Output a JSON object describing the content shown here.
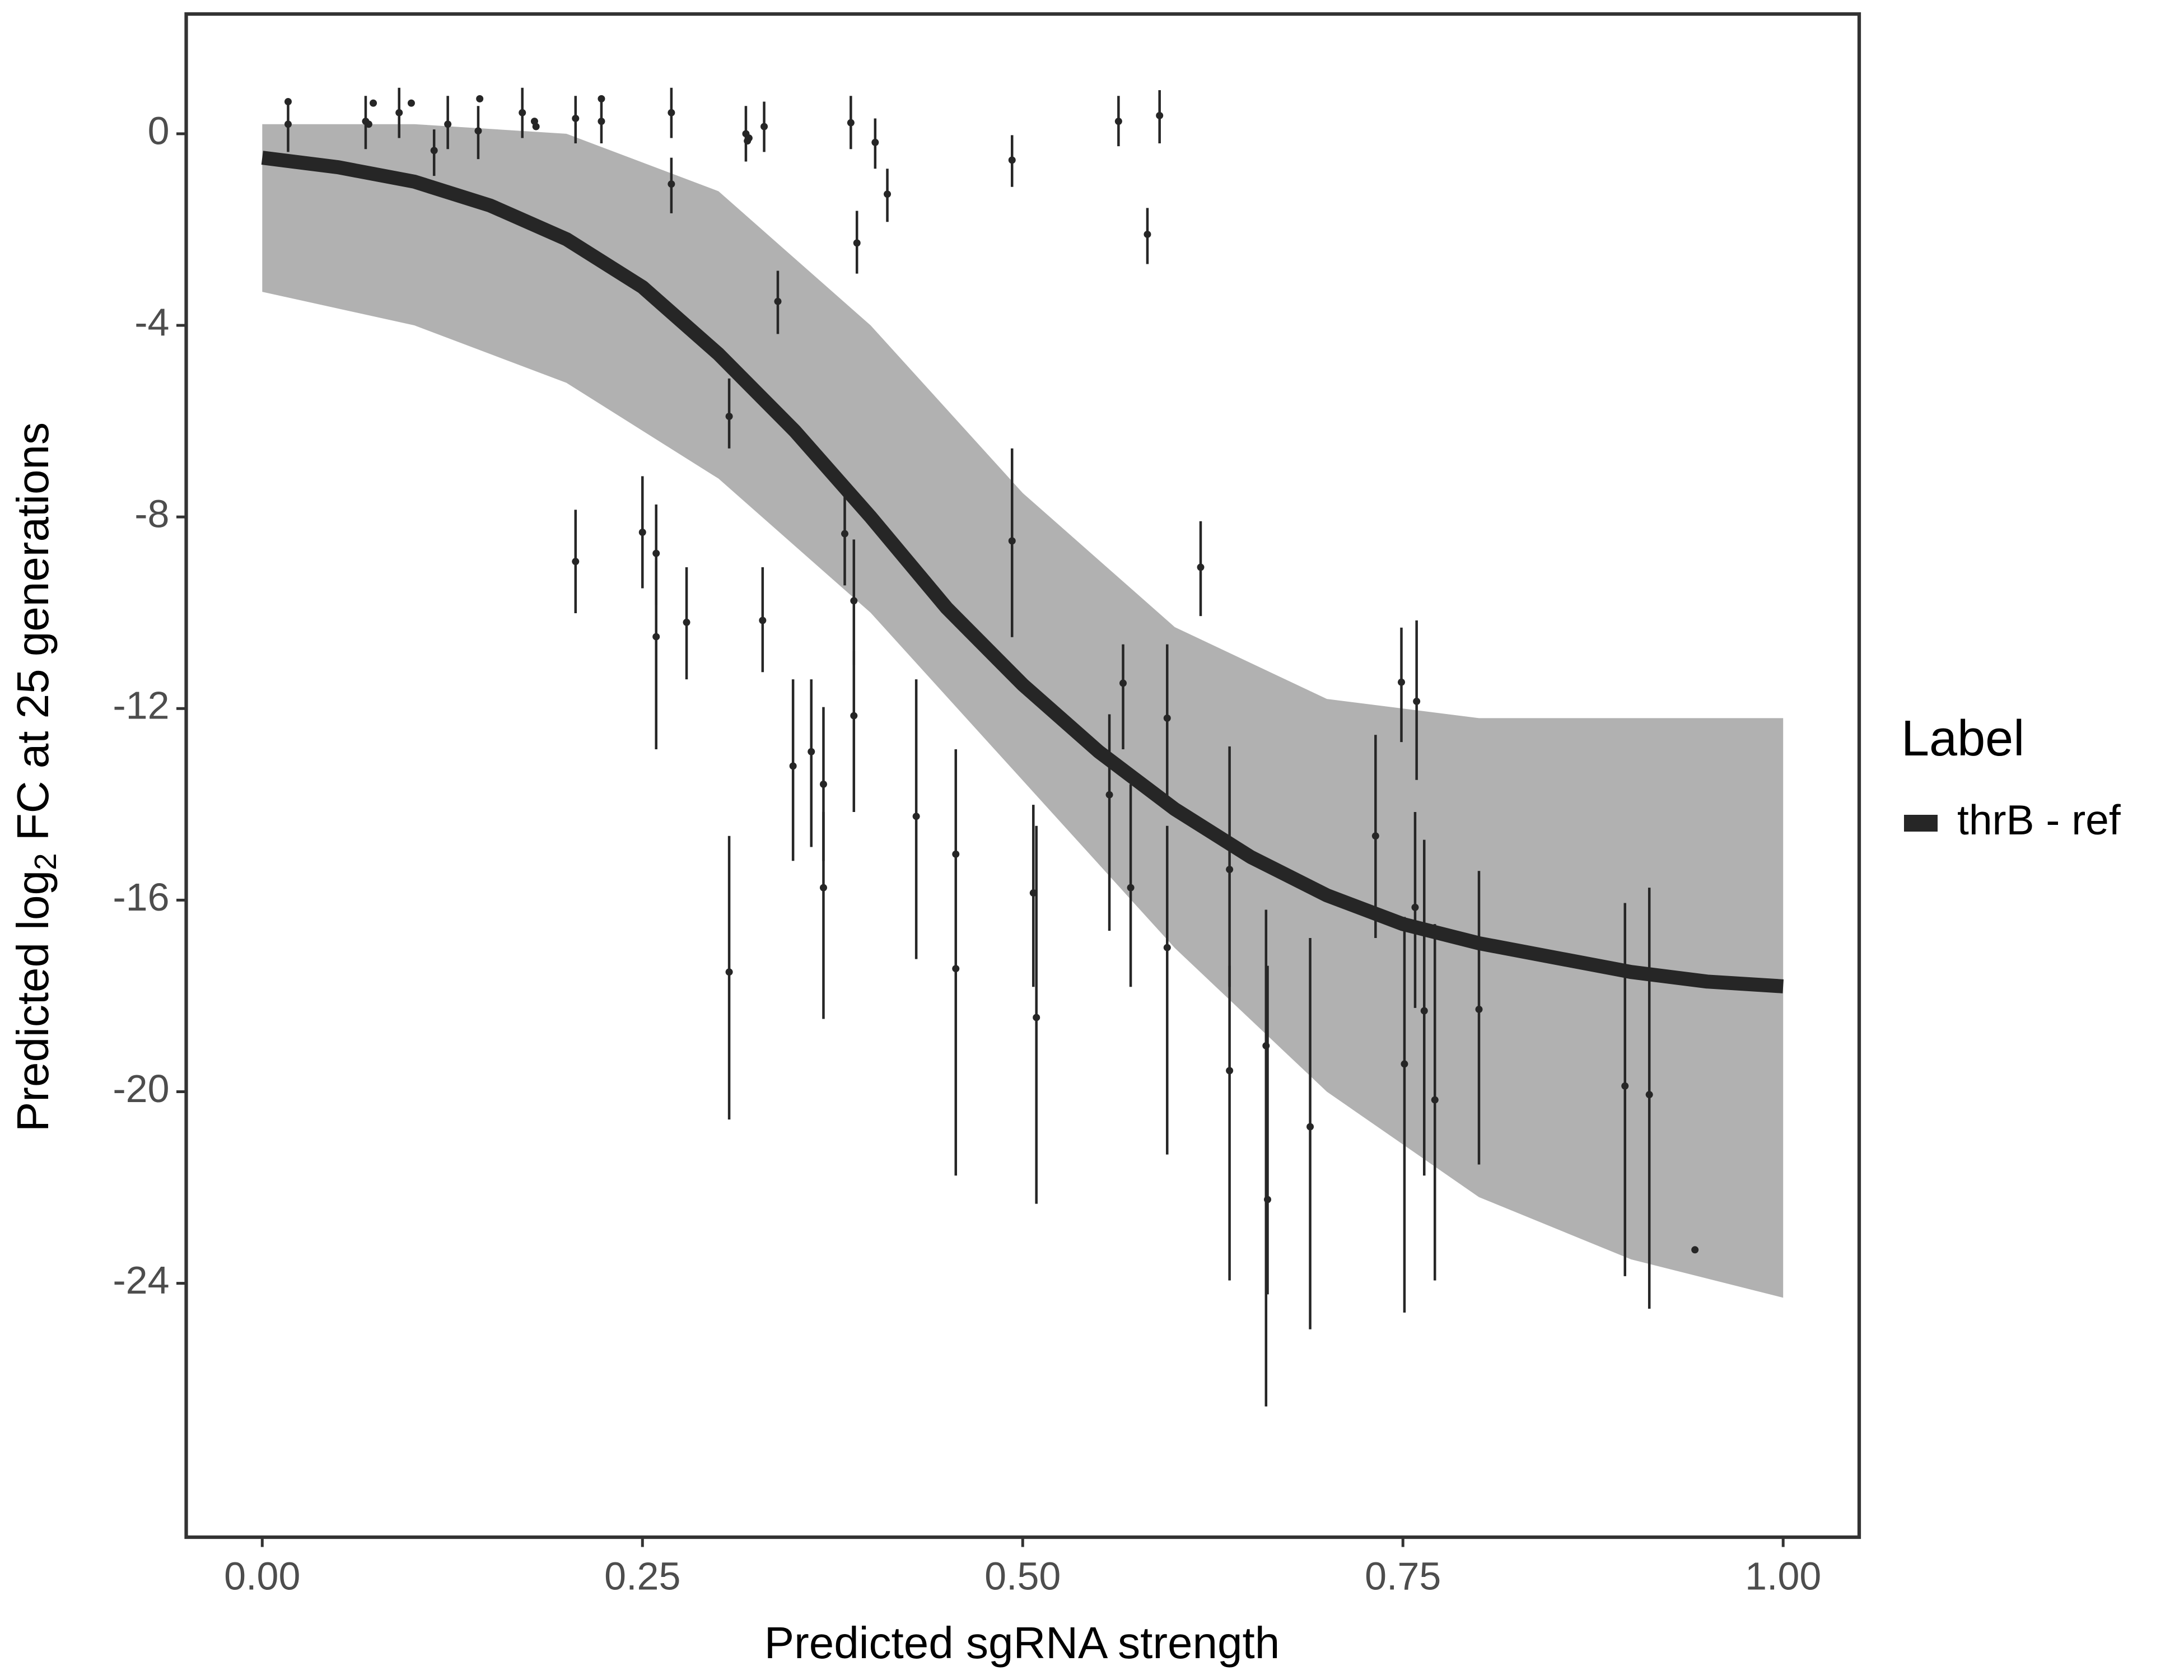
{
  "chart_data": {
    "type": "scatter",
    "xlabel": "Predicted sgRNA strength",
    "ylabel_parts": [
      "Predicted  log",
      "2",
      " FC at 25 generations"
    ],
    "legend_title": "Label",
    "legend_position": "right",
    "xlim": [
      -0.05,
      1.05
    ],
    "ylim": [
      -29.3,
      2.5
    ],
    "xticks": [
      {
        "value": 0,
        "label": "0.00"
      },
      {
        "value": 0.25,
        "label": "0.25"
      },
      {
        "value": 0.5,
        "label": "0.50"
      },
      {
        "value": 0.75,
        "label": "0.75"
      },
      {
        "value": 1,
        "label": "1.00"
      }
    ],
    "yticks": [
      0,
      -4,
      -8,
      -12,
      -16,
      -20,
      -24
    ],
    "series": [
      {
        "name": "thrB - ref",
        "color": "#262626",
        "x": [
          0,
          0.05,
          0.1,
          0.15,
          0.2,
          0.25,
          0.3,
          0.35,
          0.4,
          0.45,
          0.5,
          0.55,
          0.6,
          0.65,
          0.7,
          0.75,
          0.8,
          0.85,
          0.9,
          0.95,
          1
        ],
        "values": [
          -0.5,
          -0.7,
          -1.0,
          -1.5,
          -2.2,
          -3.2,
          -4.6,
          -6.2,
          -8.0,
          -9.9,
          -11.5,
          -12.9,
          -14.1,
          -15.1,
          -15.9,
          -16.5,
          -16.9,
          -17.2,
          -17.5,
          -17.7,
          -17.8
        ]
      }
    ],
    "band": {
      "color": "#a9a9a9",
      "x": [
        0,
        0.1,
        0.2,
        0.3,
        0.4,
        0.5,
        0.6,
        0.7,
        0.8,
        0.9,
        1
      ],
      "upper": [
        0.2,
        0.2,
        0.0,
        -1.2,
        -4.0,
        -7.5,
        -10.3,
        -11.8,
        -12.2,
        -12.2,
        -12.2
      ],
      "lower": [
        -3.3,
        -4.0,
        -5.2,
        -7.2,
        -10.0,
        -13.5,
        -17.0,
        -20.0,
        -22.2,
        -23.5,
        -24.3
      ]
    },
    "points": {
      "color": "#262626",
      "x": [
        0.017,
        0.017,
        0.068,
        0.07,
        0.073,
        0.09,
        0.098,
        0.113,
        0.122,
        0.142,
        0.143,
        0.171,
        0.179,
        0.18,
        0.206,
        0.223,
        0.223,
        0.269,
        0.269,
        0.318,
        0.319,
        0.32,
        0.33,
        0.387,
        0.403,
        0.411,
        0.391,
        0.493,
        0.563,
        0.59,
        0.582,
        0.339,
        0.307,
        0.206,
        0.25,
        0.259,
        0.259,
        0.279,
        0.329,
        0.383,
        0.389,
        0.389,
        0.493,
        0.617,
        0.307,
        0.349,
        0.361,
        0.369,
        0.369,
        0.43,
        0.456,
        0.456,
        0.507,
        0.509,
        0.557,
        0.566,
        0.571,
        0.595,
        0.595,
        0.636,
        0.636,
        0.66,
        0.661,
        0.689,
        0.732,
        0.749,
        0.751,
        0.758,
        0.759,
        0.764,
        0.771,
        0.8,
        0.896,
        0.912,
        0.942
      ],
      "values": [
        0.2,
        0.67,
        0.26,
        0.2,
        0.64,
        0.44,
        0.64,
        -0.35,
        0.2,
        0.06,
        0.73,
        0.44,
        0.26,
        0.15,
        0.32,
        0.26,
        0.73,
        0.44,
        -1.05,
        0,
        -0.15,
        -0.09,
        0.15,
        0.23,
        -0.18,
        -1.26,
        -2.28,
        -0.55,
        0.26,
        0.38,
        -2.1,
        -3.5,
        -5.9,
        -8.93,
        -8.32,
        -8.76,
        -10.5,
        -10.2,
        -10.16,
        -8.35,
        -9.75,
        -12.15,
        -8.5,
        -9.05,
        -17.5,
        -13.2,
        -12.9,
        -13.58,
        -15.74,
        -14.25,
        -15.04,
        -17.43,
        -15.85,
        -18.45,
        -13.8,
        -11.47,
        -15.74,
        -12.2,
        -16.99,
        -15.36,
        -19.56,
        -19.04,
        -22.25,
        -20.73,
        -14.66,
        -11.45,
        -19.42,
        -16.15,
        -11.85,
        -18.31,
        -20.17,
        -18.28,
        -19.88,
        -20.06,
        -23.3
      ],
      "ymin": [
        -0.38,
        null,
        -0.32,
        null,
        null,
        -0.09,
        null,
        -0.88,
        -0.32,
        -0.53,
        null,
        -0.09,
        null,
        null,
        -0.2,
        -0.2,
        null,
        -0.09,
        -1.66,
        -0.58,
        null,
        null,
        -0.38,
        -0.32,
        -0.73,
        -1.84,
        -2.92,
        -1.11,
        -0.26,
        -0.2,
        -2.72,
        -4.18,
        -6.57,
        -10.01,
        -9.49,
        -9.84,
        -12.85,
        -11.39,
        -11.24,
        -9.43,
        -11.09,
        -14.16,
        -10.51,
        -10.07,
        -20.58,
        -15.18,
        -14.89,
        -15.18,
        -18.48,
        -17.23,
        -17.37,
        -21.75,
        -17.81,
        -22.34,
        -16.64,
        -12.85,
        -17.81,
        -13.87,
        -21.31,
        -17.81,
        -23.94,
        -26.57,
        -24.23,
        -24.96,
        -16.79,
        -12.7,
        -24.61,
        -18.25,
        -13.49,
        -21.75,
        -23.94,
        -21.52,
        -23.85,
        -24.53,
        null
      ],
      "ymax": [
        0.73,
        null,
        0.79,
        null,
        null,
        0.96,
        null,
        0.09,
        0.79,
        0.58,
        null,
        0.96,
        null,
        null,
        0.79,
        0.79,
        null,
        0.96,
        -0.5,
        0.58,
        null,
        null,
        0.67,
        0.79,
        0.32,
        -0.73,
        -1.61,
        -0.03,
        0.79,
        0.91,
        -1.55,
        -2.86,
        -5.11,
        -7.85,
        -7.15,
        -7.74,
        -8.91,
        -9.05,
        -9.05,
        -7.3,
        -8.47,
        -10.8,
        -6.57,
        -8.09,
        -14.66,
        -11.39,
        -11.39,
        -11.97,
        -14.16,
        -11.39,
        -12.85,
        -14.74,
        -14.01,
        -14.45,
        -12.12,
        -10.66,
        -13.58,
        -10.66,
        -14.45,
        -12.79,
        -17.37,
        -16.2,
        -17.37,
        -16.79,
        -12.55,
        -10.31,
        -16.35,
        -14.16,
        -10.16,
        -14.74,
        -16.5,
        -15.39,
        -16.06,
        -15.74,
        null
      ]
    }
  }
}
